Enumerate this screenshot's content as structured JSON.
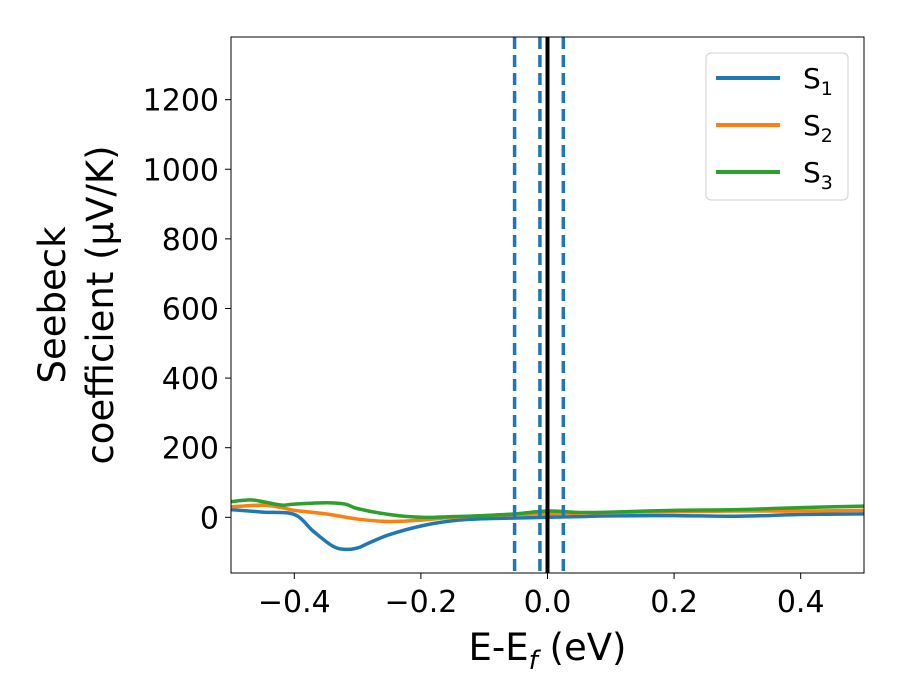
{
  "chart_data": {
    "type": "line",
    "title": "",
    "xlabel": {
      "main": "E-E",
      "sub": "f",
      "suffix": " (eV)"
    },
    "ylabel": {
      "line1": "Seebeck",
      "line2": "coefficient  (μV/K)"
    },
    "xlim": [
      -0.5,
      0.5
    ],
    "ylim": [
      -160,
      1380
    ],
    "xticks": [
      -0.4,
      -0.2,
      0.0,
      0.2,
      0.4
    ],
    "xtick_labels": [
      "−0.4",
      "−0.2",
      "0.0",
      "0.2",
      "0.4"
    ],
    "yticks": [
      0,
      200,
      400,
      600,
      800,
      1000,
      1200
    ],
    "ytick_labels": [
      "0",
      "200",
      "400",
      "600",
      "800",
      "1000",
      "1200"
    ],
    "grid": false,
    "legend_position": "top-right",
    "series": [
      {
        "name": "S",
        "sub": "1",
        "color": "#1f77b4",
        "x": [
          -0.5,
          -0.45,
          -0.4,
          -0.37,
          -0.34,
          -0.32,
          -0.3,
          -0.28,
          -0.25,
          -0.2,
          -0.15,
          -0.1,
          -0.05,
          0.0,
          0.05,
          0.1,
          0.2,
          0.3,
          0.4,
          0.5
        ],
        "y": [
          22,
          15,
          8,
          -40,
          -82,
          -92,
          -88,
          -72,
          -50,
          -25,
          -10,
          -4,
          -2,
          0,
          2,
          4,
          5,
          3,
          8,
          10
        ]
      },
      {
        "name": "S",
        "sub": "2",
        "color": "#ff7f0e",
        "x": [
          -0.5,
          -0.45,
          -0.42,
          -0.4,
          -0.35,
          -0.3,
          -0.25,
          -0.2,
          -0.15,
          -0.1,
          -0.05,
          0.0,
          0.05,
          0.1,
          0.2,
          0.3,
          0.4,
          0.5
        ],
        "y": [
          30,
          35,
          28,
          20,
          10,
          -5,
          -12,
          -8,
          0,
          5,
          8,
          10,
          12,
          14,
          16,
          18,
          18,
          20
        ]
      },
      {
        "name": "S",
        "sub": "3",
        "color": "#2ca02c",
        "x": [
          -0.5,
          -0.47,
          -0.45,
          -0.42,
          -0.4,
          -0.35,
          -0.32,
          -0.3,
          -0.25,
          -0.2,
          -0.15,
          -0.1,
          -0.05,
          0.0,
          0.05,
          0.1,
          0.2,
          0.3,
          0.4,
          0.5
        ],
        "y": [
          45,
          50,
          45,
          35,
          38,
          42,
          38,
          25,
          8,
          0,
          2,
          5,
          10,
          18,
          14,
          15,
          20,
          22,
          28,
          32
        ]
      }
    ],
    "vlines": [
      {
        "x": -0.052,
        "style": "dashed",
        "color": "#1f77b4"
      },
      {
        "x": -0.012,
        "style": "dashed",
        "color": "#1f77b4"
      },
      {
        "x": 0.025,
        "style": "dashed",
        "color": "#1f77b4"
      },
      {
        "x": 0.0,
        "style": "solid",
        "color": "#000000"
      }
    ]
  }
}
